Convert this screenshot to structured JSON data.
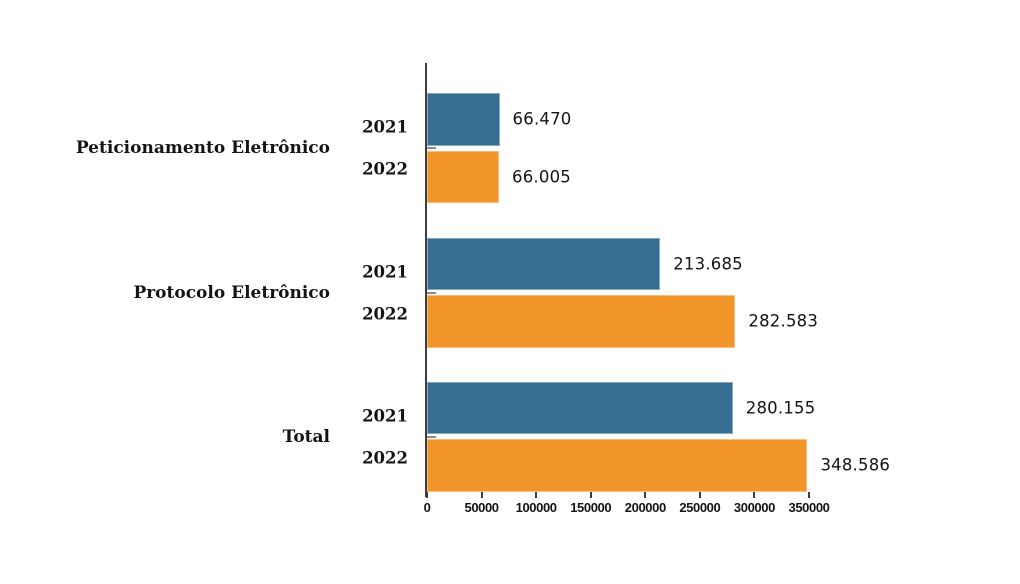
{
  "chart_data": {
    "type": "bar",
    "orientation": "horizontal",
    "title": "",
    "grid": false,
    "legend_position": "none",
    "categories": [
      "Peticionamento Eletrônico",
      "Protocolo Eletrônico",
      "Total"
    ],
    "series": [
      {
        "name": "2021",
        "color": "#376f93",
        "values": [
          66470,
          213685,
          280155
        ],
        "value_labels": [
          "66.470",
          "213.685",
          "280.155"
        ]
      },
      {
        "name": "2022",
        "color": "#f2952a",
        "values": [
          66005,
          282583,
          348586
        ],
        "value_labels": [
          "66.005",
          "282.583",
          "348.586"
        ]
      }
    ],
    "x_axis": {
      "min": 0,
      "max": 350000,
      "ticks": [
        0,
        50000,
        100000,
        150000,
        200000,
        250000,
        300000,
        350000
      ],
      "tick_labels": [
        "0",
        "50000",
        "100000",
        "150000",
        "200000",
        "250000",
        "300000",
        "350000"
      ]
    }
  },
  "colors": {
    "bar_2021": "#376f93",
    "bar_2022": "#f2952a",
    "axis_line": "#3d3d3d",
    "x_tick": "#3d3d3d",
    "category_tick": "#8c8c8c",
    "text": "#141414",
    "background": "#ffffff"
  }
}
